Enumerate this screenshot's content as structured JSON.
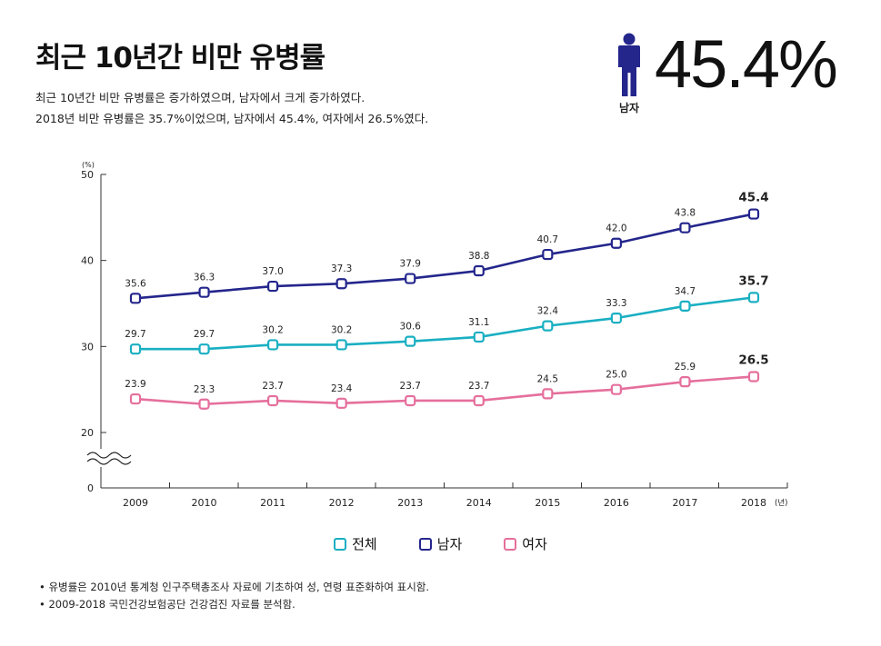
{
  "header": {
    "title": "최근 10년간 비만 유병률",
    "subtitle_line1": "최근 10년간 비만 유병률은 증가하였으며, 남자에서 크게 증가하였다.",
    "subtitle_line2": "2018년 비만 유병률은 35.7%이었으며, 남자에서 45.4%, 여자에서 26.5%였다."
  },
  "highlight": {
    "icon": "person-icon",
    "label": "남자",
    "value": "45.4%"
  },
  "chart_data": {
    "type": "line",
    "title": "최근 10년간 비만 유병률",
    "xlabel": "(년)",
    "ylabel": "(%)",
    "categories": [
      "2009",
      "2010",
      "2011",
      "2012",
      "2013",
      "2014",
      "2015",
      "2016",
      "2017",
      "2018"
    ],
    "yticks": [
      "0",
      "20",
      "30",
      "40",
      "50"
    ],
    "ylim": [
      20,
      50
    ],
    "axis_break": true,
    "grid": false,
    "series": [
      {
        "name": "전체",
        "color": "#1aafc2",
        "values": [
          29.7,
          29.7,
          30.2,
          30.2,
          30.6,
          31.1,
          32.4,
          33.3,
          34.7,
          35.7
        ],
        "labels": [
          "29.7",
          "29.7",
          "30.2",
          "30.2",
          "30.6",
          "31.1",
          "32.4",
          "33.3",
          "34.7",
          "35.7"
        ]
      },
      {
        "name": "남자",
        "color": "#24268c",
        "values": [
          35.6,
          36.3,
          37.0,
          37.3,
          37.9,
          38.8,
          40.7,
          42.0,
          43.8,
          45.4
        ],
        "labels": [
          "35.6",
          "36.3",
          "37.0",
          "37.3",
          "37.9",
          "38.8",
          "40.7",
          "42.0",
          "43.8",
          "45.4"
        ]
      },
      {
        "name": "여자",
        "color": "#e56f9c",
        "values": [
          23.9,
          23.3,
          23.7,
          23.4,
          23.7,
          23.7,
          24.5,
          25.0,
          25.9,
          26.5
        ],
        "labels": [
          "23.9",
          "23.3",
          "23.7",
          "23.4",
          "23.7",
          "23.7",
          "24.5",
          "25.0",
          "25.9",
          "26.5"
        ]
      }
    ],
    "legend_position": "bottom"
  },
  "footnotes": {
    "note1": "• 유병률은 2010년 통계청 인구주택총조사 자료에 기초하여 성, 연령 표준화하여 표시함.",
    "note2": "• 2009-2018 국민건강보험공단 건강검진 자료를 분석함."
  }
}
